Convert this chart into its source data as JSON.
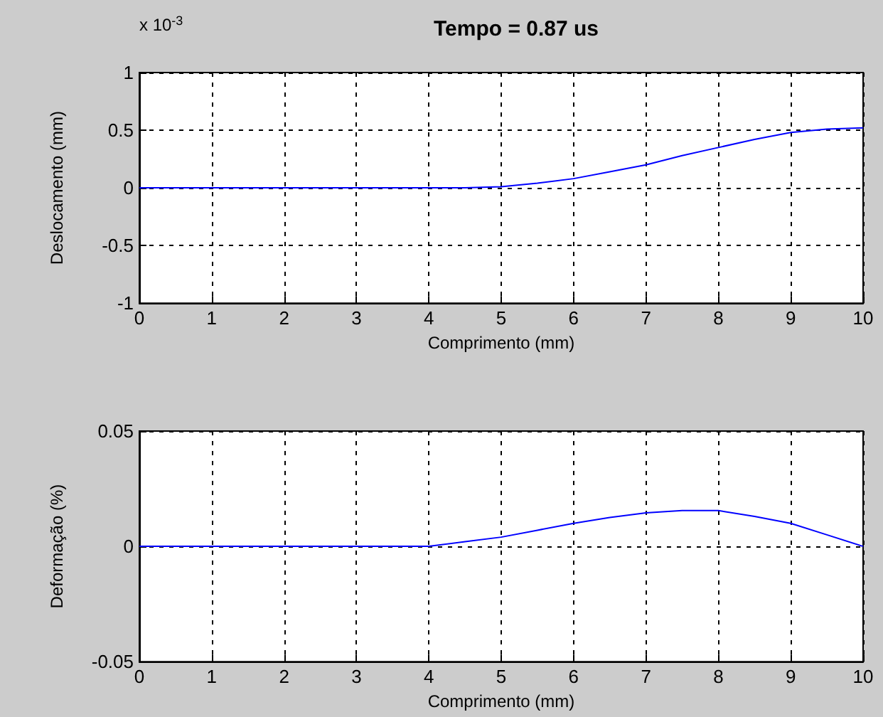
{
  "chart_data": [
    {
      "type": "line",
      "title": "Tempo = 0.87 us",
      "xlabel": "Comprimento (mm)",
      "ylabel": "Deslocamento (mm)",
      "annotations": [
        "x 10$^{-3}$"
      ],
      "x": [
        0,
        1,
        2,
        3,
        4,
        4.5,
        5,
        5.5,
        6,
        6.5,
        7,
        7.5,
        8,
        8.5,
        9,
        9.5,
        10
      ],
      "series": [
        {
          "color": "#0000ff",
          "values": [
            0,
            0,
            0,
            0,
            0,
            0,
            0.01,
            0.04,
            0.08,
            0.14,
            0.2,
            0.28,
            0.35,
            0.42,
            0.48,
            0.51,
            0.52
          ]
        }
      ],
      "xlim": [
        0,
        10
      ],
      "xticks": [
        0,
        1,
        2,
        3,
        4,
        5,
        6,
        7,
        8,
        9,
        10
      ],
      "ylim": [
        -1,
        1
      ],
      "yticks": [
        -1,
        -0.5,
        0,
        0.5,
        1
      ],
      "grid": true,
      "marker": "none",
      "line_style": "solid"
    },
    {
      "type": "line",
      "xlabel": "Comprimento (mm)",
      "ylabel": "Deformação (%)",
      "x": [
        0,
        1,
        2,
        3,
        4,
        4.5,
        5,
        5.5,
        6,
        6.5,
        7,
        7.5,
        8,
        8.5,
        9,
        9.5,
        10
      ],
      "series": [
        {
          "color": "#0000ff",
          "values": [
            0,
            0,
            0,
            0,
            0,
            0.002,
            0.004,
            0.007,
            0.01,
            0.0125,
            0.0145,
            0.0155,
            0.0155,
            0.013,
            0.01,
            0.005,
            0
          ]
        }
      ],
      "xlim": [
        0,
        10
      ],
      "xticks": [
        0,
        1,
        2,
        3,
        4,
        5,
        6,
        7,
        8,
        9,
        10
      ],
      "ylim": [
        -0.05,
        0.05
      ],
      "yticks": [
        -0.05,
        0,
        0.05
      ],
      "grid": true,
      "marker": "none",
      "line_style": "solid"
    }
  ]
}
